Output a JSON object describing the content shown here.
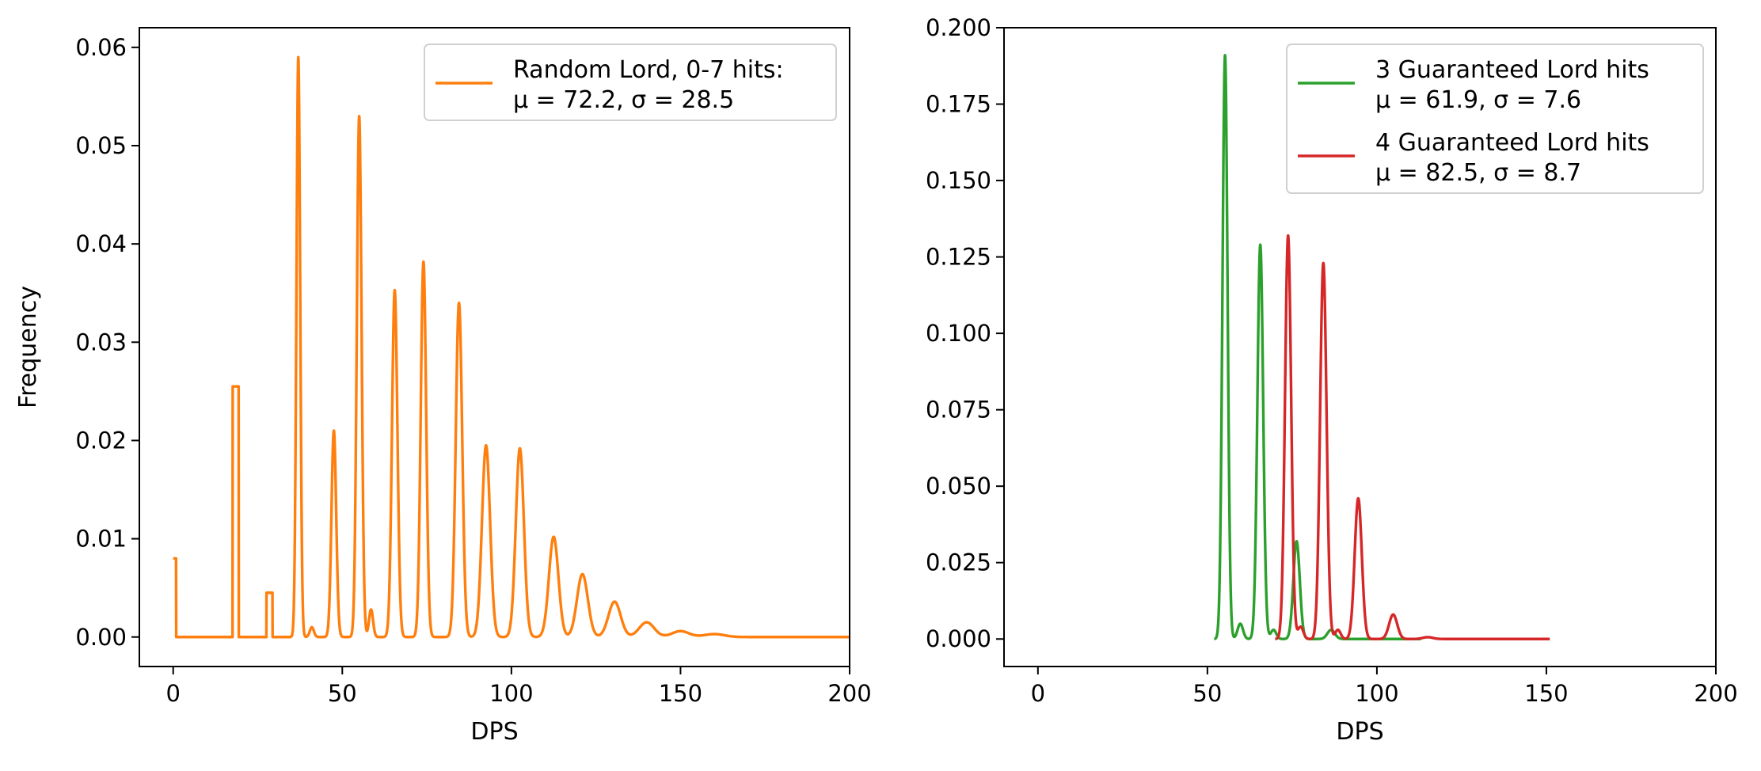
{
  "chart_data": [
    {
      "type": "line",
      "title": "",
      "xlabel": "DPS",
      "ylabel": "Frequency",
      "xlim": [
        -10,
        200
      ],
      "ylim": [
        -0.003,
        0.062
      ],
      "xticks": [
        0,
        50,
        100,
        150,
        200
      ],
      "xtick_labels": [
        "0",
        "50",
        "100",
        "150",
        "200"
      ],
      "yticks": [
        0.0,
        0.01,
        0.02,
        0.03,
        0.04,
        0.05,
        0.06
      ],
      "ytick_labels": [
        "0.00",
        "0.01",
        "0.02",
        "0.03",
        "0.04",
        "0.05",
        "0.06"
      ],
      "legend_position": "top-right",
      "series": [
        {
          "name_lines": [
            "Random Lord, 0-7 hits:",
            "μ = 72.2, σ = 28.5"
          ],
          "color": "#ff7f0e",
          "spikes": [
            [
              0,
              0.008
            ],
            [
              18.5,
              0.0255
            ],
            [
              28.5,
              0.0045
            ]
          ],
          "peaks": [
            [
              37,
              0.059,
              0.55
            ],
            [
              41,
              0.001,
              0.6
            ],
            [
              47.5,
              0.021,
              0.7
            ],
            [
              55,
              0.053,
              0.7
            ],
            [
              58.5,
              0.0028,
              0.6
            ],
            [
              65.5,
              0.0353,
              0.8
            ],
            [
              74,
              0.0382,
              0.8
            ],
            [
              84.5,
              0.034,
              0.95
            ],
            [
              92.5,
              0.0195,
              1.2
            ],
            [
              102.5,
              0.0192,
              1.2
            ],
            [
              112.5,
              0.0102,
              1.4
            ],
            [
              121,
              0.0064,
              1.6
            ],
            [
              130.5,
              0.0036,
              1.8
            ],
            [
              140,
              0.0015,
              2.2
            ],
            [
              150,
              0.0006,
              2.5
            ],
            [
              160,
              0.0003,
              3.0
            ]
          ],
          "x_range": [
            0,
            200
          ]
        }
      ]
    },
    {
      "type": "line",
      "title": "",
      "xlabel": "DPS",
      "ylabel": "",
      "xlim": [
        -10,
        200
      ],
      "ylim": [
        -0.009,
        0.2
      ],
      "xticks": [
        0,
        50,
        100,
        150,
        200
      ],
      "xtick_labels": [
        "0",
        "50",
        "100",
        "150",
        "200"
      ],
      "yticks": [
        0.0,
        0.025,
        0.05,
        0.075,
        0.1,
        0.125,
        0.15,
        0.175,
        0.2
      ],
      "ytick_labels": [
        "0.000",
        "0.025",
        "0.050",
        "0.075",
        "0.100",
        "0.125",
        "0.150",
        "0.175",
        "0.200"
      ],
      "legend_position": "top-right",
      "series": [
        {
          "name_lines": [
            "3 Guaranteed Lord hits",
            "μ = 61.9, σ = 7.6"
          ],
          "color": "#2ca02c",
          "x_range": [
            52,
            113
          ],
          "peaks": [
            [
              55.2,
              0.191,
              0.75
            ],
            [
              59.7,
              0.005,
              0.8
            ],
            [
              65.6,
              0.129,
              0.85
            ],
            [
              69.5,
              0.003,
              0.8
            ],
            [
              76.3,
              0.032,
              0.95
            ],
            [
              86.5,
              0.003,
              1.1
            ]
          ]
        },
        {
          "name_lines": [
            "4 Guaranteed Lord hits",
            "μ = 82.5, σ = 8.7"
          ],
          "color": "#d62728",
          "x_range": [
            70,
            151
          ],
          "peaks": [
            [
              73.8,
              0.132,
              0.9
            ],
            [
              77.5,
              0.004,
              0.8
            ],
            [
              84.2,
              0.123,
              0.95
            ],
            [
              88.5,
              0.003,
              0.8
            ],
            [
              94.5,
              0.046,
              1.05
            ],
            [
              104.8,
              0.008,
              1.2
            ],
            [
              115,
              0.0006,
              1.5
            ]
          ]
        }
      ]
    }
  ]
}
